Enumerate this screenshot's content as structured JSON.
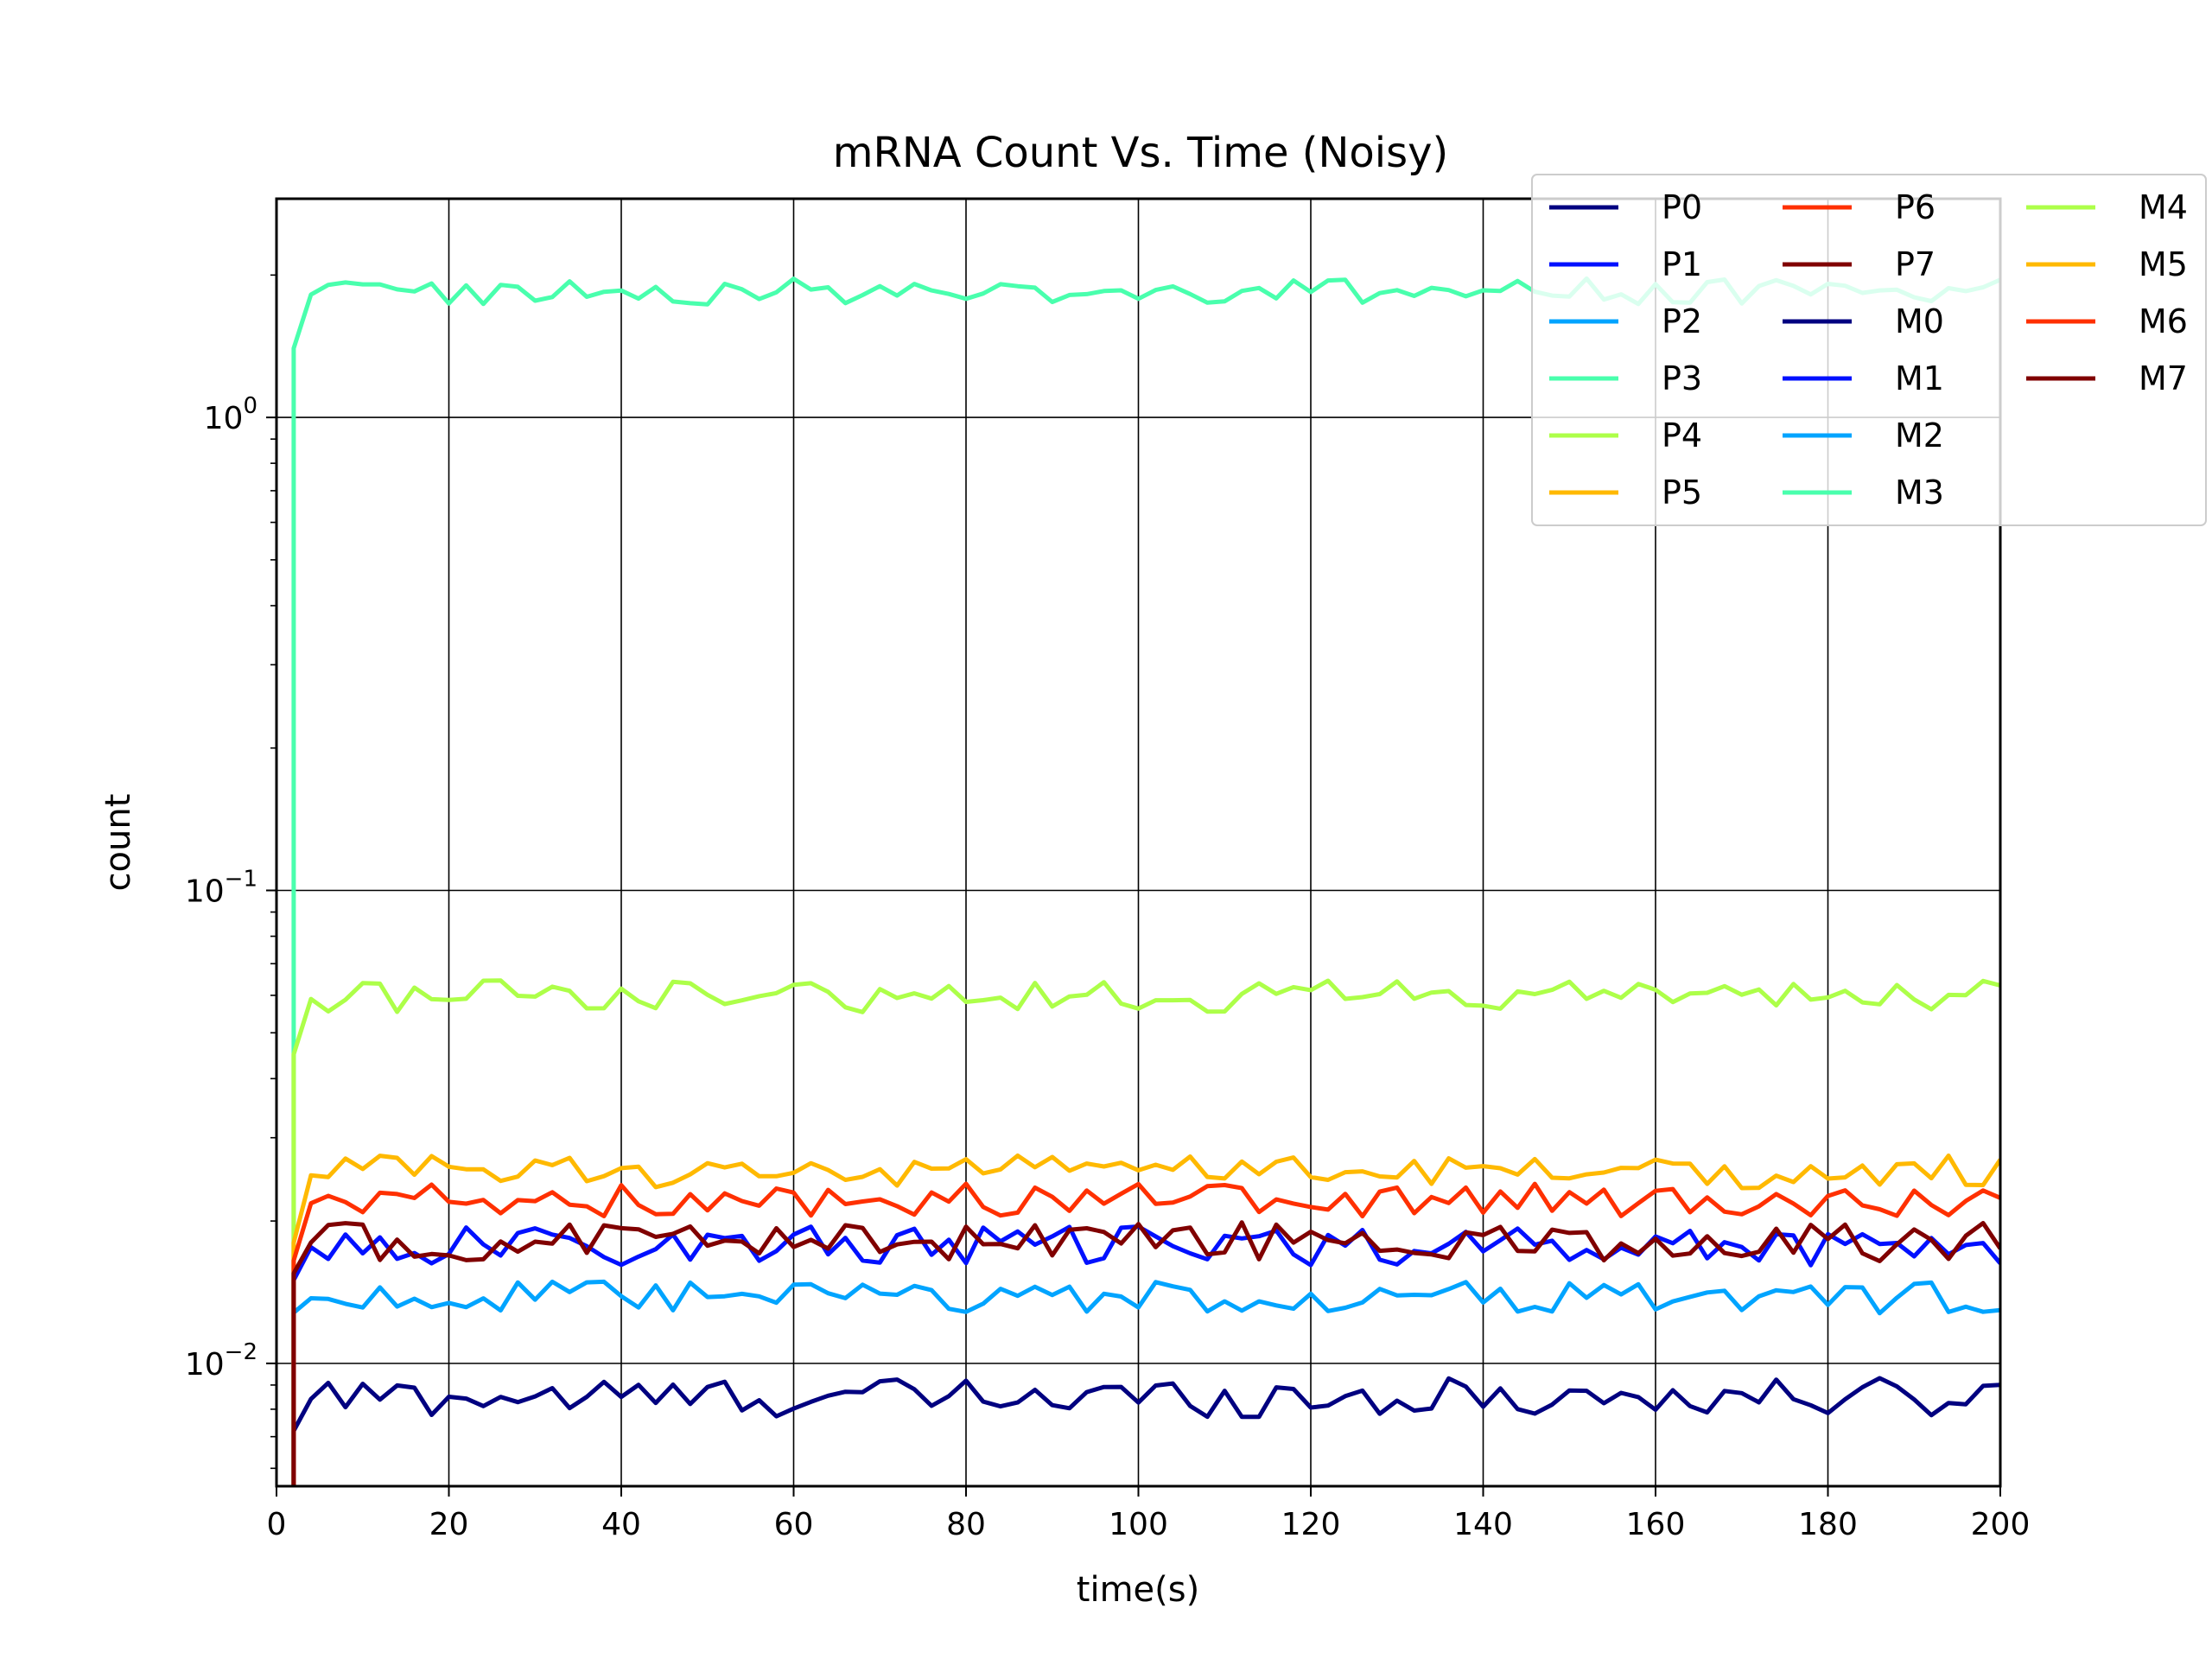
{
  "chart_data": {
    "type": "line",
    "title": "mRNA Count Vs. Time (Noisy)",
    "xlabel": "time(s)",
    "ylabel": "count",
    "xlim": [
      0,
      200
    ],
    "ylim": [
      0.0055,
      2.9
    ],
    "yscale": "log",
    "grid": true,
    "legend_placement": "top-right",
    "legend_columns": 3,
    "x_ticks": [
      0,
      20,
      40,
      60,
      80,
      100,
      120,
      140,
      160,
      180,
      200
    ],
    "x_tick_labels": [
      "0",
      "20",
      "40",
      "60",
      "80",
      "100",
      "120",
      "140",
      "160",
      "180",
      "200"
    ],
    "y_ticks": [
      {
        "value": 0.01,
        "base": "10",
        "exp": "−2"
      },
      {
        "value": 0.1,
        "base": "10",
        "exp": "−1"
      },
      {
        "value": 1,
        "base": "10",
        "exp": "0"
      }
    ],
    "y_minor_ticks": [
      0.006,
      0.007,
      0.008,
      0.009,
      0.02,
      0.03,
      0.04,
      0.05,
      0.06,
      0.07,
      0.08,
      0.09,
      0.2,
      0.3,
      0.4,
      0.5,
      0.6,
      0.7,
      0.8,
      0.9,
      2
    ],
    "sim": {
      "t_start": 2,
      "t_end": 200,
      "dt": 2
    },
    "series": [
      {
        "name": "P0",
        "color": "#000080",
        "base": 0.0085,
        "noise": 0.06,
        "start": 0.0072,
        "show": false
      },
      {
        "name": "P1",
        "color": "#0010ff",
        "base": 0.0178,
        "noise": 0.06,
        "start": 0.015,
        "show": false
      },
      {
        "name": "P2",
        "color": "#00a4ff",
        "base": 0.0138,
        "noise": 0.05,
        "start": 0.0128,
        "show": false
      },
      {
        "name": "P3",
        "color": "#49ffad",
        "base": 1.85,
        "noise": 0.04,
        "start": 1.4,
        "show": false
      },
      {
        "name": "P4",
        "color": "#adff49",
        "base": 0.06,
        "noise": 0.05,
        "start": 0.045,
        "show": false
      },
      {
        "name": "P5",
        "color": "#ffb900",
        "base": 0.0255,
        "noise": 0.05,
        "start": 0.018,
        "show": false
      },
      {
        "name": "P6",
        "color": "#ff3000",
        "base": 0.0222,
        "noise": 0.05,
        "start": 0.0165,
        "show": false
      },
      {
        "name": "P7",
        "color": "#800000",
        "base": 0.0182,
        "noise": 0.06,
        "start": 0.0155,
        "show": false
      },
      {
        "name": "M0",
        "color": "#000080",
        "base": 0.0085,
        "noise": 0.06,
        "start": 0.0072,
        "show": true
      },
      {
        "name": "M1",
        "color": "#0010ff",
        "base": 0.0178,
        "noise": 0.06,
        "start": 0.015,
        "show": true
      },
      {
        "name": "M2",
        "color": "#00a4ff",
        "base": 0.0138,
        "noise": 0.05,
        "start": 0.0128,
        "show": true
      },
      {
        "name": "M3",
        "color": "#49ffad",
        "base": 1.85,
        "noise": 0.04,
        "start": 1.4,
        "show": true
      },
      {
        "name": "M4",
        "color": "#adff49",
        "base": 0.06,
        "noise": 0.05,
        "start": 0.045,
        "show": true
      },
      {
        "name": "M5",
        "color": "#ffb900",
        "base": 0.0255,
        "noise": 0.05,
        "start": 0.018,
        "show": true
      },
      {
        "name": "M6",
        "color": "#ff3000",
        "base": 0.0222,
        "noise": 0.05,
        "start": 0.0165,
        "show": true
      },
      {
        "name": "M7",
        "color": "#800000",
        "base": 0.0182,
        "noise": 0.06,
        "start": 0.0155,
        "show": true
      }
    ]
  }
}
